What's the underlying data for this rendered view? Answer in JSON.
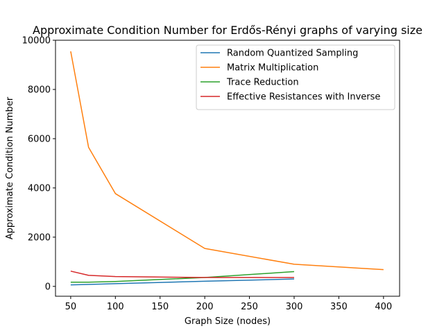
{
  "chart_data": {
    "type": "line",
    "title": "Approximate Condition Number for Erdős-Rényi graphs of varying size",
    "xlabel": "Graph Size (nodes)",
    "ylabel": "Approximate Condition Number",
    "xlim": [
      33,
      418
    ],
    "ylim": [
      -400,
      10000
    ],
    "xticks": [
      50,
      100,
      150,
      200,
      250,
      300,
      350,
      400
    ],
    "xtick_labels": [
      "50",
      "100",
      "150",
      "200",
      "250",
      "300",
      "350",
      "400"
    ],
    "yticks": [
      0,
      2000,
      4000,
      6000,
      8000,
      10000
    ],
    "ytick_labels": [
      "0",
      "2000",
      "4000",
      "6000",
      "8000",
      "10000"
    ],
    "grid": false,
    "legend_position": "upper right",
    "series": [
      {
        "name": "Random Quantized Sampling",
        "color": "#1f77b4",
        "x": [
          50,
          70,
          100,
          200,
          300
        ],
        "y": [
          60,
          80,
          110,
          210,
          300
        ]
      },
      {
        "name": "Matrix Multiplication",
        "color": "#ff7f0e",
        "x": [
          50,
          70,
          100,
          200,
          300,
          400
        ],
        "y": [
          9550,
          5650,
          3770,
          1540,
          900,
          680
        ]
      },
      {
        "name": "Trace Reduction",
        "color": "#2ca02c",
        "x": [
          50,
          70,
          100,
          200,
          300
        ],
        "y": [
          170,
          170,
          200,
          360,
          600
        ]
      },
      {
        "name": "Effective Resistances with Inverse",
        "color": "#d62728",
        "x": [
          50,
          70,
          100,
          200,
          300
        ],
        "y": [
          620,
          450,
          400,
          360,
          360
        ]
      }
    ]
  }
}
